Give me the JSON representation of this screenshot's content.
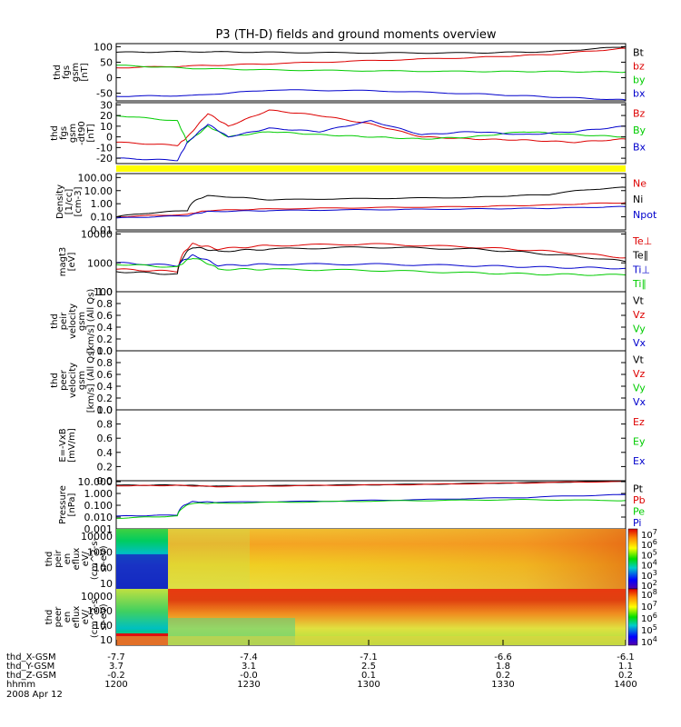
{
  "title": "P3 (TH-D) fields and ground moments overview",
  "date_label": "2008 Apr 12",
  "colors": {
    "black": "#000000",
    "red": "#dd0000",
    "green": "#00cc00",
    "blue": "#0000cc",
    "yellow": "#ffff00"
  },
  "chart_data": [
    {
      "type": "line",
      "panel": "fgs_gsm",
      "ylabel": [
        "thd",
        "fgs",
        "gsm",
        "[nT]"
      ],
      "yticks": [
        "100",
        "50",
        "0",
        "-50"
      ],
      "ylim": [
        -75,
        110
      ],
      "legend": [
        "Bt",
        "bz",
        "by",
        "bx"
      ],
      "series": [
        {
          "name": "Bt",
          "color": "black",
          "x": [
            0,
            0.15,
            0.3,
            0.5,
            0.7,
            0.85,
            1
          ],
          "y": [
            82,
            84,
            82,
            80,
            80,
            84,
            100
          ]
        },
        {
          "name": "bz",
          "color": "red",
          "x": [
            0,
            0.15,
            0.3,
            0.5,
            0.7,
            0.85,
            1
          ],
          "y": [
            32,
            38,
            45,
            55,
            65,
            75,
            95
          ]
        },
        {
          "name": "by",
          "color": "green",
          "x": [
            0,
            0.15,
            0.3,
            0.5,
            0.7,
            0.85,
            1
          ],
          "y": [
            40,
            30,
            25,
            22,
            20,
            20,
            18
          ]
        },
        {
          "name": "bx",
          "color": "blue",
          "x": [
            0,
            0.15,
            0.3,
            0.5,
            0.7,
            0.85,
            1
          ],
          "y": [
            -60,
            -58,
            -40,
            -42,
            -52,
            -62,
            -72
          ]
        }
      ]
    },
    {
      "type": "line",
      "panel": "fgs_gsm_dt90",
      "ylabel": [
        "thd",
        "fgs",
        "gsm",
        "-dt90",
        "[nT]"
      ],
      "yticks": [
        "30",
        "20",
        "10",
        "0",
        "-10",
        "-20"
      ],
      "ylim": [
        -25,
        32
      ],
      "legend": [
        "Bz",
        "By",
        "Bx"
      ],
      "series": [
        {
          "name": "Bz",
          "color": "red",
          "x": [
            0,
            0.12,
            0.14,
            0.18,
            0.22,
            0.3,
            0.4,
            0.5,
            0.6,
            0.7,
            0.8,
            0.9,
            1
          ],
          "y": [
            -5,
            -8,
            0,
            22,
            10,
            25,
            20,
            12,
            0,
            -2,
            -3,
            -5,
            -2
          ]
        },
        {
          "name": "By",
          "color": "green",
          "x": [
            0,
            0.12,
            0.14,
            0.18,
            0.22,
            0.3,
            0.4,
            0.5,
            0.6,
            0.7,
            0.8,
            0.9,
            1
          ],
          "y": [
            20,
            15,
            -5,
            10,
            0,
            5,
            2,
            0,
            -2,
            0,
            5,
            2,
            0
          ]
        },
        {
          "name": "Bx",
          "color": "blue",
          "x": [
            0,
            0.12,
            0.14,
            0.18,
            0.22,
            0.3,
            0.4,
            0.5,
            0.6,
            0.7,
            0.8,
            0.9,
            1
          ],
          "y": [
            -20,
            -22,
            -5,
            12,
            0,
            8,
            5,
            15,
            2,
            5,
            2,
            5,
            10
          ]
        }
      ]
    },
    {
      "type": "line",
      "panel": "density",
      "log": true,
      "ylabel": [
        "Density",
        "[1/cc]",
        "[cm-3]"
      ],
      "yticks": [
        "100.00",
        "10.00",
        "1.00",
        "0.10",
        "0.01"
      ],
      "ylim": [
        0.01,
        200
      ],
      "legend": [
        "Ne",
        "Ni",
        "Npot"
      ],
      "series": [
        {
          "name": "Ni",
          "color": "black",
          "x": [
            0,
            0.14,
            0.18,
            0.3,
            0.5,
            0.7,
            0.85,
            1
          ],
          "y": [
            0.1,
            0.3,
            4,
            2,
            2.5,
            3,
            5,
            18
          ]
        },
        {
          "name": "Ne",
          "color": "red",
          "x": [
            0,
            0.14,
            0.18,
            0.3,
            0.5,
            0.7,
            0.85,
            1
          ],
          "y": [
            0.1,
            0.15,
            0.3,
            0.4,
            0.5,
            0.6,
            0.8,
            1.2
          ]
        },
        {
          "name": "Npot",
          "color": "blue",
          "x": [
            0,
            0.14,
            0.18,
            0.3,
            0.5,
            0.7,
            0.85,
            1
          ],
          "y": [
            0.08,
            0.12,
            0.25,
            0.3,
            0.35,
            0.4,
            0.45,
            0.6
          ]
        }
      ]
    },
    {
      "type": "line",
      "panel": "temperature",
      "log": true,
      "ylabel": [
        "magt3",
        "[eV]"
      ],
      "yticks": [
        "10000",
        "1000",
        "100"
      ],
      "ylim": [
        100,
        12000
      ],
      "legend": [
        "Te⊥",
        "Te∥",
        "Ti⊥",
        "Ti∥"
      ],
      "series": [
        {
          "name": "Te⊥",
          "color": "red",
          "x": [
            0,
            0.12,
            0.15,
            0.2,
            0.3,
            0.5,
            0.7,
            0.85,
            1
          ],
          "y": [
            600,
            500,
            4500,
            3000,
            4000,
            4500,
            3500,
            2500,
            1500
          ]
        },
        {
          "name": "Te∥",
          "color": "black",
          "x": [
            0,
            0.12,
            0.15,
            0.2,
            0.3,
            0.5,
            0.7,
            0.85,
            1
          ],
          "y": [
            500,
            400,
            3500,
            2500,
            3000,
            3500,
            3000,
            2000,
            1100
          ]
        },
        {
          "name": "Ti⊥",
          "color": "blue",
          "x": [
            0,
            0.12,
            0.15,
            0.2,
            0.3,
            0.5,
            0.7,
            0.85,
            1
          ],
          "y": [
            1000,
            800,
            1800,
            800,
            900,
            900,
            800,
            700,
            650
          ]
        },
        {
          "name": "Ti∥",
          "color": "green",
          "x": [
            0,
            0.12,
            0.15,
            0.2,
            0.3,
            0.5,
            0.7,
            0.85,
            1
          ],
          "y": [
            900,
            700,
            1500,
            600,
            600,
            550,
            450,
            400,
            380
          ]
        }
      ]
    },
    {
      "type": "line",
      "panel": "peir_velocity",
      "empty": true,
      "ylabel": [
        "thd",
        "peir",
        "velocity",
        "gsm",
        "[km/s] (All Qs)"
      ],
      "yticks": [
        "1.0",
        "0.8",
        "0.6",
        "0.4",
        "0.2",
        "0.0"
      ],
      "ylim": [
        0,
        1
      ],
      "legend": [
        "Vt",
        "Vz",
        "Vy",
        "Vx"
      ]
    },
    {
      "type": "line",
      "panel": "peer_velocity",
      "empty": true,
      "ylabel": [
        "thd",
        "peer",
        "velocity",
        "gsm",
        "[km/s] (All Qs)"
      ],
      "yticks": [
        "1.0",
        "0.8",
        "0.6",
        "0.4",
        "0.2",
        "0.0"
      ],
      "ylim": [
        0,
        1
      ],
      "legend": [
        "Vt",
        "Vz",
        "Vy",
        "Vx"
      ]
    },
    {
      "type": "line",
      "panel": "efield",
      "empty": true,
      "ylabel": [
        "E=-VxB",
        "[mV/m]"
      ],
      "yticks": [
        "1.0",
        "0.8",
        "0.6",
        "0.4",
        "0.2",
        "0.0"
      ],
      "ylim": [
        0,
        1
      ],
      "legend": [
        "Ez",
        "Ey",
        "Ex"
      ]
    },
    {
      "type": "line",
      "panel": "pressure",
      "log": true,
      "ylabel": [
        "Pressure",
        "[nPa]"
      ],
      "yticks": [
        "10.000",
        "1.000",
        "0.100",
        "0.010",
        "0.001"
      ],
      "ylim": [
        0.001,
        12
      ],
      "legend": [
        "Pt",
        "Pb",
        "Pe",
        "Pi"
      ],
      "series": [
        {
          "name": "Pt",
          "color": "black",
          "x": [
            0,
            0.12,
            0.2,
            0.4,
            0.6,
            0.8,
            1
          ],
          "y": [
            5,
            5.2,
            4,
            5,
            6,
            8,
            11
          ]
        },
        {
          "name": "Pb",
          "color": "red",
          "x": [
            0,
            0.12,
            0.2,
            0.4,
            0.6,
            0.8,
            1
          ],
          "y": [
            4.5,
            4.8,
            3.8,
            4.8,
            5.8,
            7.8,
            10.5
          ]
        },
        {
          "name": "Pi",
          "color": "blue",
          "x": [
            0,
            0.12,
            0.15,
            0.2,
            0.4,
            0.6,
            0.8,
            1
          ],
          "y": [
            0.012,
            0.015,
            0.2,
            0.18,
            0.22,
            0.3,
            0.45,
            0.8
          ]
        },
        {
          "name": "Pe",
          "color": "green",
          "x": [
            0,
            0.12,
            0.15,
            0.2,
            0.4,
            0.6,
            0.8,
            1
          ],
          "y": [
            0.008,
            0.012,
            0.15,
            0.15,
            0.2,
            0.25,
            0.3,
            0.25
          ]
        }
      ]
    },
    {
      "type": "heatmap",
      "panel": "peir_en_eflux",
      "ylabel": [
        "thd",
        "peir",
        "en",
        "eflux",
        "eV/",
        "(cm^2-s-",
        "sr-eV)"
      ],
      "yticks": [
        "10000",
        "1000",
        "100",
        "10"
      ],
      "colorbar": [
        "10^7",
        "10^6",
        "10^5",
        "10^4",
        "10^3",
        "10^2"
      ]
    },
    {
      "type": "heatmap",
      "panel": "peer_en_eflux",
      "ylabel": [
        "thd",
        "peer",
        "en",
        "eflux",
        "eV/",
        "(cm^2-s-",
        "sr-eV)"
      ],
      "yticks": [
        "10000",
        "1000",
        "100",
        "10"
      ],
      "colorbar": [
        "10^8",
        "10^7",
        "10^6",
        "10^5",
        "10^4"
      ]
    }
  ],
  "x_axis": {
    "rows": [
      {
        "label": "thd_X-GSM",
        "values": [
          "-7.7",
          "-7.4",
          "-7.1",
          "-6.6",
          "-6.1"
        ]
      },
      {
        "label": "thd_Y-GSM",
        "values": [
          "3.7",
          "3.1",
          "2.5",
          "1.8",
          "1.1"
        ]
      },
      {
        "label": "thd_Z-GSM",
        "values": [
          "-0.2",
          "-0.0",
          "0.1",
          "0.2",
          "0.2"
        ]
      },
      {
        "label": "hhmm",
        "values": [
          "1200",
          "1230",
          "1300",
          "1330",
          "1400"
        ]
      }
    ]
  }
}
